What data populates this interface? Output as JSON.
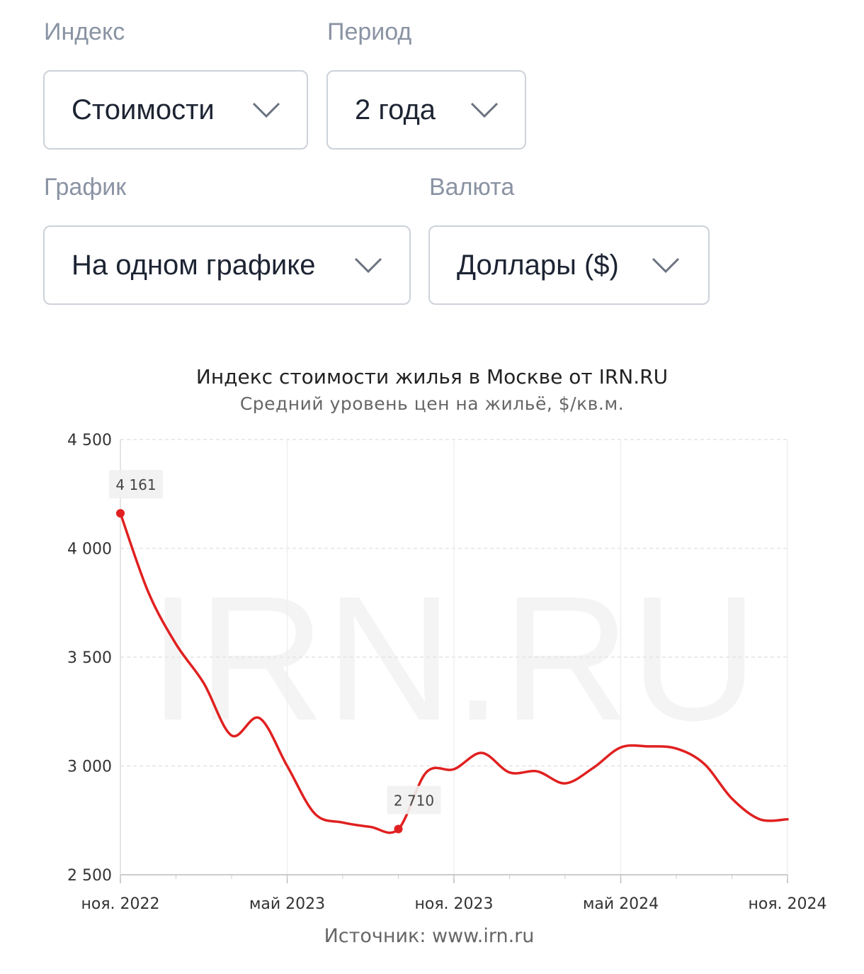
{
  "filters": {
    "index": {
      "label": "Индекс",
      "value": "Стоимости"
    },
    "period": {
      "label": "Период",
      "value": "2 года"
    },
    "chart": {
      "label": "График",
      "value": "На одном графике"
    },
    "currency": {
      "label": "Валюта",
      "value": "Доллары ($)"
    }
  },
  "icons": {
    "dropdown": "chevron-down-icon"
  },
  "colors": {
    "line": "#e02020",
    "label_text": "#8a93a3",
    "grid": "#e3e3e3",
    "watermark": "#f4f4f4"
  },
  "watermark": "IRN.RU",
  "chart_data": {
    "type": "line",
    "title": "Индекс стоимости жилья в Москве от IRN.RU",
    "subtitle": "Средний уровень цен на жильё, $/кв.м.",
    "source": "Источник:  www.irn.ru",
    "ylim": [
      2500,
      4500
    ],
    "yticks": [
      4500,
      4000,
      3500,
      3000,
      2500
    ],
    "ytick_labels": [
      "4 500",
      "4 000",
      "3 500",
      "3 000",
      "2 500"
    ],
    "xlim": [
      "2022-11",
      "2024-11"
    ],
    "xticks": [
      "2022-11",
      "2023-05",
      "2023-11",
      "2024-05",
      "2024-11"
    ],
    "xtick_labels": [
      "ноя. 2022",
      "май 2023",
      "ноя. 2023",
      "май 2024",
      "ноя. 2024"
    ],
    "grid": true,
    "series": [
      {
        "x": [
          "2022-11",
          "2022-12",
          "2023-01",
          "2023-02",
          "2023-03",
          "2023-04",
          "2023-05",
          "2023-06",
          "2023-07",
          "2023-08",
          "2023-09",
          "2023-10",
          "2023-11",
          "2023-12",
          "2024-01",
          "2024-02",
          "2024-03",
          "2024-04",
          "2024-05",
          "2024-06",
          "2024-07",
          "2024-08",
          "2024-09",
          "2024-10",
          "2024-11"
        ],
        "values": [
          4161,
          3800,
          3560,
          3380,
          3140,
          3220,
          3000,
          2780,
          2740,
          2720,
          2710,
          2970,
          2985,
          3060,
          2970,
          2975,
          2920,
          2990,
          3085,
          3090,
          3080,
          3010,
          2850,
          2755,
          2755
        ]
      }
    ],
    "annotations": [
      {
        "x": "2022-11",
        "value": 4161,
        "label": "4 161"
      },
      {
        "x": "2023-09",
        "value": 2710,
        "label": "2 710"
      }
    ]
  }
}
